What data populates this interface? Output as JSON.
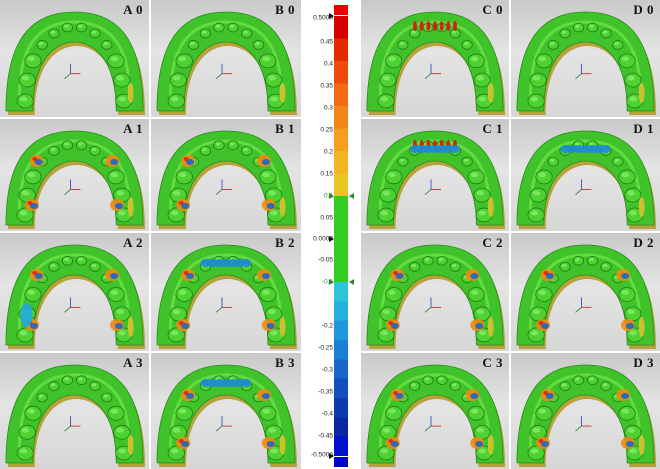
{
  "panels": [
    {
      "id": "A0",
      "label": "A 0",
      "col": 0,
      "row": 0,
      "dev": []
    },
    {
      "id": "B0",
      "label": "B 0",
      "col": 1,
      "row": 0,
      "dev": []
    },
    {
      "id": "C0",
      "label": "C 0",
      "col": 2,
      "row": 0,
      "dev": [
        "red-incisal"
      ]
    },
    {
      "id": "D0",
      "label": "D 0",
      "col": 3,
      "row": 0,
      "dev": []
    },
    {
      "id": "A1",
      "label": "A 1",
      "col": 0,
      "row": 1,
      "dev": [
        "multi-molar"
      ]
    },
    {
      "id": "B1",
      "label": "B 1",
      "col": 1,
      "row": 1,
      "dev": [
        "multi-molar"
      ]
    },
    {
      "id": "C1",
      "label": "C 1",
      "col": 2,
      "row": 1,
      "dev": [
        "blue-incisal",
        "red-incisal"
      ]
    },
    {
      "id": "D1",
      "label": "D 1",
      "col": 3,
      "row": 1,
      "dev": [
        "blue-incisal"
      ]
    },
    {
      "id": "A2",
      "label": "A 2",
      "col": 0,
      "row": 2,
      "dev": [
        "multi-molar",
        "blue-patch"
      ]
    },
    {
      "id": "B2",
      "label": "B 2",
      "col": 1,
      "row": 2,
      "dev": [
        "multi-molar",
        "blue-incisal"
      ]
    },
    {
      "id": "C2",
      "label": "C 2",
      "col": 2,
      "row": 2,
      "dev": [
        "multi-molar"
      ]
    },
    {
      "id": "D2",
      "label": "D 2",
      "col": 3,
      "row": 2,
      "dev": [
        "multi-molar"
      ]
    },
    {
      "id": "A3",
      "label": "A 3",
      "col": 0,
      "row": 3,
      "dev": []
    },
    {
      "id": "B3",
      "label": "B 3",
      "col": 1,
      "row": 3,
      "dev": [
        "blue-incisal",
        "multi-molar"
      ]
    },
    {
      "id": "C3",
      "label": "C 3",
      "col": 2,
      "row": 3,
      "dev": [
        "multi-molar"
      ]
    },
    {
      "id": "D3",
      "label": "D 3",
      "col": 3,
      "row": 3,
      "dev": [
        "multi-molar"
      ]
    }
  ],
  "colorbar": {
    "max_label": "0.5000",
    "min_label": "-0.5000",
    "mid_label": "0.0000",
    "upper_tol_label": "0.1",
    "lower_tol_label": "-0.1",
    "ticks": [
      "0.45",
      "0.4",
      "0.35",
      "0.3",
      "0.25",
      "0.2",
      "0.15",
      "0.05",
      "-0.05",
      "-0.2",
      "-0.25",
      "-0.3",
      "-0.35",
      "-0.4",
      "-0.45"
    ],
    "positive_colors": [
      "#d40000",
      "#e62a00",
      "#ee4a0c",
      "#f26a12",
      "#f4851a",
      "#f59e20",
      "#f1b522",
      "#e8c424"
    ],
    "neutral_color": "#33cc22",
    "negative_colors": [
      "#2ec4d8",
      "#24b0e0",
      "#1e98dd",
      "#1a80d6",
      "#1666cc",
      "#124fbf",
      "#0e3ab0",
      "#0a26a0",
      "#0010cc"
    ],
    "out_high_color": "#ee0000",
    "out_low_color": "#0000cc"
  }
}
